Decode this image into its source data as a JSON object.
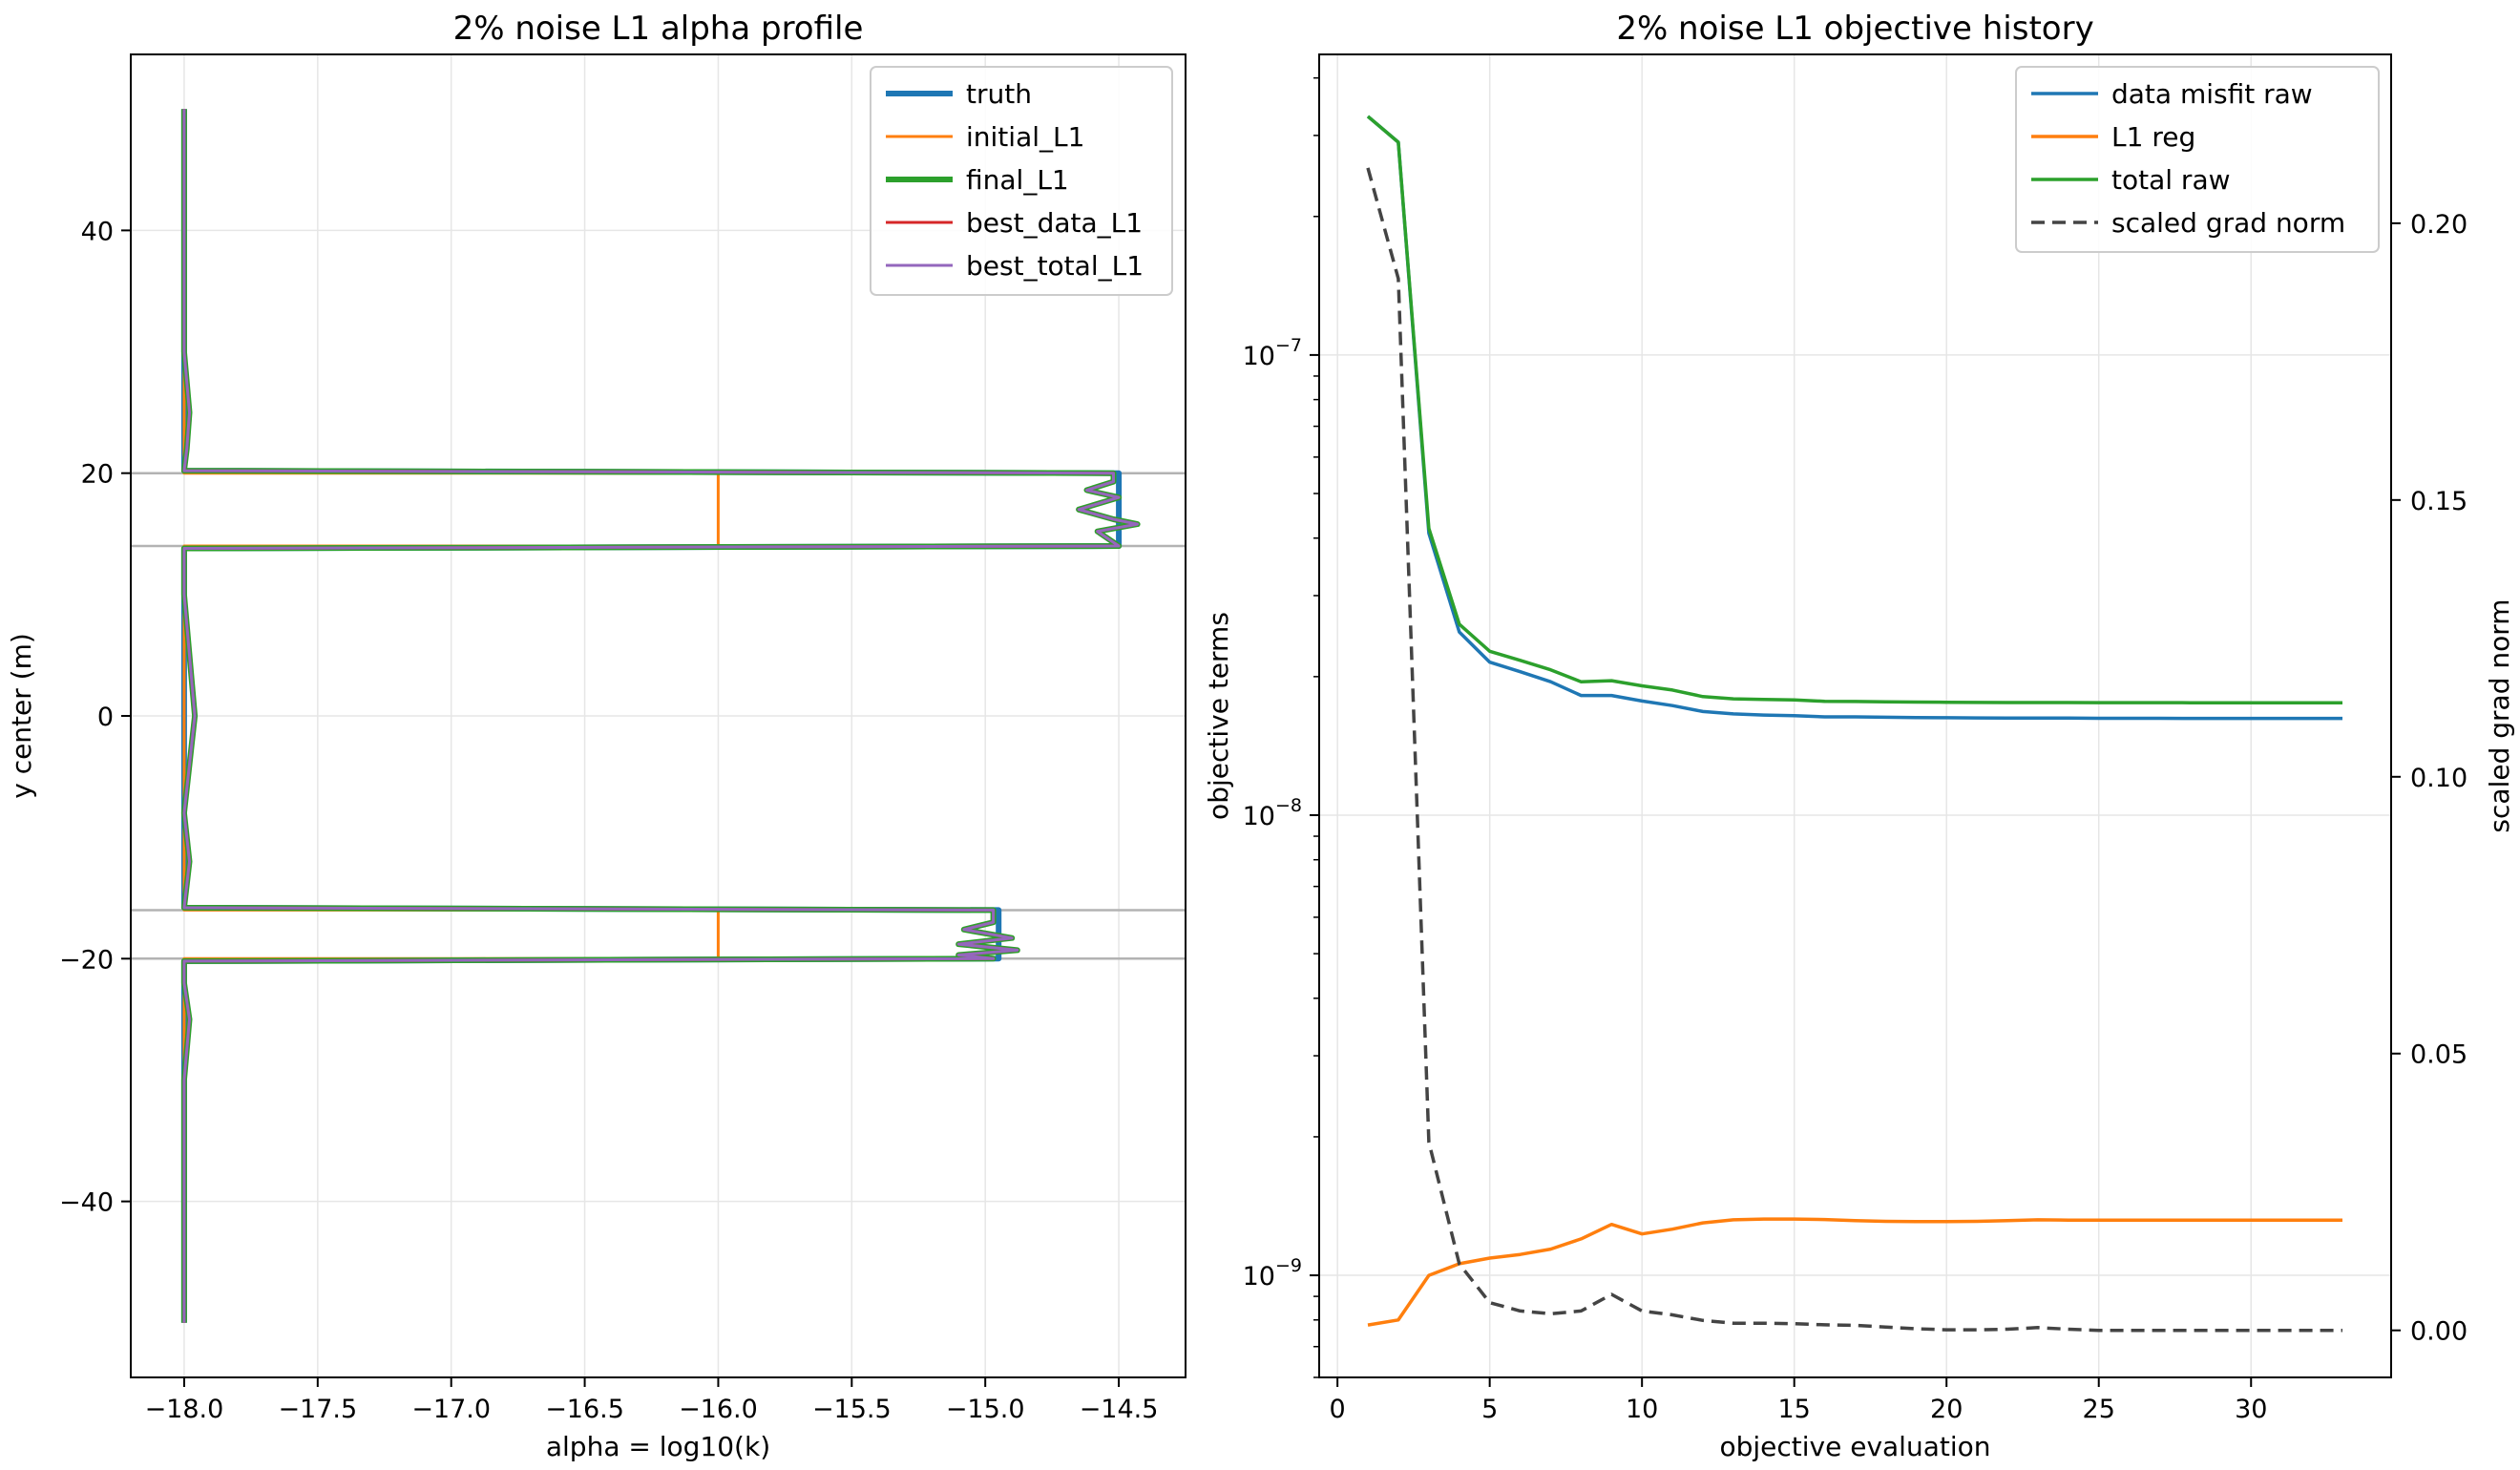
{
  "chart_data": [
    {
      "type": "line",
      "title": "2% noise L1 alpha profile",
      "xlabel": "alpha = log10(k)",
      "ylabel": "y center (m)",
      "xlim": [
        -18.2,
        -14.25
      ],
      "ylim": [
        -54.5,
        54.5
      ],
      "xticks": [
        -18.0,
        -17.5,
        -17.0,
        -16.5,
        -16.0,
        -15.5,
        -15.0,
        -14.5
      ],
      "xtick_labels": [
        "−18.0",
        "−17.5",
        "−17.0",
        "−16.5",
        "−16.0",
        "−15.5",
        "−15.0",
        "−14.5"
      ],
      "yticks": [
        -40,
        -20,
        0,
        20,
        40
      ],
      "ytick_labels": [
        "−40",
        "−20",
        "0",
        "20",
        "40"
      ],
      "grid": true,
      "hlines": [
        20,
        14,
        -16,
        -20
      ],
      "legend_position": "top-right",
      "series": [
        {
          "name": "truth",
          "color": "#1f77b4",
          "width": 6,
          "x": [
            -18.0,
            -18.0,
            -14.5,
            -14.5,
            -18.0,
            -18.0,
            -14.95,
            -14.95,
            -18.0,
            -18.0
          ],
          "y": [
            50,
            20.2,
            20.0,
            14.0,
            13.8,
            -15.8,
            -16.0,
            -20.0,
            -20.2,
            -50
          ]
        },
        {
          "name": "initial_L1",
          "color": "#ff7f0e",
          "width": 3,
          "x": [
            -18.0,
            -18.0,
            -16.0,
            -16.0,
            -18.0,
            -18.0,
            -16.0,
            -16.0,
            -18.0,
            -18.0
          ],
          "y": [
            50,
            20.0,
            20.0,
            14.0,
            14.0,
            -16.0,
            -16.0,
            -20.0,
            -20.0,
            -50
          ]
        },
        {
          "name": "final_L1",
          "color": "#2ca02c",
          "width": 6,
          "x": [
            -18.0,
            -18.0,
            -17.98,
            -17.99,
            -18.0,
            -14.52,
            -14.52,
            -14.62,
            -14.5,
            -14.65,
            -14.52,
            -14.43,
            -14.58,
            -14.5,
            -18.0,
            -18.0,
            -17.98,
            -17.96,
            -17.98,
            -18.0,
            -17.98,
            -18.0,
            -18.0,
            -14.97,
            -14.97,
            -15.08,
            -14.9,
            -15.1,
            -14.88,
            -15.1,
            -14.97,
            -18.0,
            -18.0,
            -17.98,
            -18.0,
            -18.0
          ],
          "y": [
            50,
            30,
            25,
            22,
            20.2,
            20.0,
            19.3,
            18.6,
            18.0,
            17.0,
            16.2,
            15.8,
            15.2,
            14.0,
            13.8,
            10,
            5,
            0,
            -4,
            -8,
            -12,
            -15.8,
            -15.8,
            -16.0,
            -17.0,
            -17.6,
            -18.3,
            -18.8,
            -19.3,
            -19.7,
            -20.0,
            -20.2,
            -22,
            -25,
            -30,
            -50
          ]
        },
        {
          "name": "best_data_L1",
          "color": "#d62728",
          "width": 3,
          "x": [
            -18.0,
            -18.0,
            -17.98,
            -17.99,
            -18.0,
            -14.52,
            -14.52,
            -14.62,
            -14.5,
            -14.65,
            -14.52,
            -14.43,
            -14.58,
            -14.5,
            -18.0,
            -18.0,
            -17.98,
            -17.96,
            -17.98,
            -18.0,
            -17.98,
            -18.0,
            -18.0,
            -14.97,
            -14.97,
            -15.08,
            -14.9,
            -15.1,
            -14.88,
            -15.1,
            -14.97,
            -18.0,
            -18.0,
            -17.98,
            -18.0,
            -18.0
          ],
          "y": [
            50,
            30,
            25,
            22,
            20.2,
            20.0,
            19.3,
            18.6,
            18.0,
            17.0,
            16.2,
            15.8,
            15.2,
            14.0,
            13.8,
            10,
            5,
            0,
            -4,
            -8,
            -12,
            -15.8,
            -15.8,
            -16.0,
            -17.0,
            -17.6,
            -18.3,
            -18.8,
            -19.3,
            -19.7,
            -20.0,
            -20.2,
            -22,
            -25,
            -30,
            -50
          ]
        },
        {
          "name": "best_total_L1",
          "color": "#9467bd",
          "width": 3,
          "x": [
            -18.0,
            -18.0,
            -17.98,
            -17.99,
            -18.0,
            -14.52,
            -14.52,
            -14.62,
            -14.5,
            -14.65,
            -14.52,
            -14.43,
            -14.58,
            -14.5,
            -18.0,
            -18.0,
            -17.98,
            -17.96,
            -17.98,
            -18.0,
            -17.98,
            -18.0,
            -18.0,
            -14.97,
            -14.97,
            -15.08,
            -14.9,
            -15.1,
            -14.88,
            -15.1,
            -14.97,
            -18.0,
            -18.0,
            -17.98,
            -18.0,
            -18.0
          ],
          "y": [
            50,
            30,
            25,
            22,
            20.2,
            20.0,
            19.3,
            18.6,
            18.0,
            17.0,
            16.2,
            15.8,
            15.2,
            14.0,
            13.8,
            10,
            5,
            0,
            -4,
            -8,
            -12,
            -15.8,
            -15.8,
            -16.0,
            -17.0,
            -17.6,
            -18.3,
            -18.8,
            -19.3,
            -19.7,
            -20.0,
            -20.2,
            -22,
            -25,
            -30,
            -50
          ]
        }
      ]
    },
    {
      "type": "line",
      "title": "2% noise L1 objective history",
      "xlabel": "objective evaluation",
      "ylabel": "objective terms",
      "y2label": "scaled grad norm",
      "yscale": "log",
      "xlim": [
        -0.6,
        34.6
      ],
      "ylim": [
        6e-10,
        4.5e-07
      ],
      "y2lim": [
        -0.0085,
        0.2305
      ],
      "xticks": [
        0,
        5,
        10,
        15,
        20,
        25,
        30
      ],
      "xtick_labels": [
        "0",
        "5",
        "10",
        "15",
        "20",
        "25",
        "30"
      ],
      "yticks": [
        1e-09,
        1e-08,
        1e-07
      ],
      "ytick_labels": [
        [
          "10",
          "−9"
        ],
        [
          "10",
          "−8"
        ],
        [
          "10",
          "−7"
        ]
      ],
      "y2ticks": [
        0.0,
        0.05,
        0.1,
        0.15,
        0.2
      ],
      "y2tick_labels": [
        "0.00",
        "0.05",
        "0.10",
        "0.15",
        "0.20"
      ],
      "grid": true,
      "legend_position": "top-right",
      "x": [
        1,
        2,
        3,
        4,
        5,
        6,
        7,
        8,
        9,
        10,
        11,
        12,
        13,
        14,
        15,
        16,
        17,
        18,
        19,
        20,
        21,
        22,
        23,
        24,
        25,
        26,
        27,
        28,
        29,
        30,
        31,
        32,
        33
      ],
      "series": [
        {
          "name": "data misfit raw",
          "color": "#1f77b4",
          "axis": "left",
          "dash": "",
          "values": [
            3.3e-07,
            2.9e-07,
            4.1e-08,
            2.5e-08,
            2.15e-08,
            2.05e-08,
            1.95e-08,
            1.82e-08,
            1.82e-08,
            1.77e-08,
            1.73e-08,
            1.68e-08,
            1.66e-08,
            1.65e-08,
            1.645e-08,
            1.635e-08,
            1.635e-08,
            1.632e-08,
            1.63e-08,
            1.628e-08,
            1.627e-08,
            1.626e-08,
            1.625e-08,
            1.625e-08,
            1.624e-08,
            1.624e-08,
            1.624e-08,
            1.623e-08,
            1.623e-08,
            1.623e-08,
            1.623e-08,
            1.623e-08,
            1.623e-08
          ]
        },
        {
          "name": "L1 reg",
          "color": "#ff7f0e",
          "axis": "left",
          "dash": "",
          "values": [
            7.8e-10,
            8e-10,
            1e-09,
            1.06e-09,
            1.09e-09,
            1.11e-09,
            1.14e-09,
            1.2e-09,
            1.29e-09,
            1.23e-09,
            1.26e-09,
            1.3e-09,
            1.32e-09,
            1.325e-09,
            1.325e-09,
            1.322e-09,
            1.315e-09,
            1.31e-09,
            1.308e-09,
            1.308e-09,
            1.31e-09,
            1.315e-09,
            1.32e-09,
            1.318e-09,
            1.318e-09,
            1.318e-09,
            1.318e-09,
            1.318e-09,
            1.318e-09,
            1.318e-09,
            1.318e-09,
            1.318e-09,
            1.318e-09
          ]
        },
        {
          "name": "total raw",
          "color": "#2ca02c",
          "axis": "left",
          "dash": "",
          "values": [
            3.3e-07,
            2.9e-07,
            4.2e-08,
            2.6e-08,
            2.27e-08,
            2.17e-08,
            2.07e-08,
            1.95e-08,
            1.96e-08,
            1.91e-08,
            1.87e-08,
            1.81e-08,
            1.79e-08,
            1.785e-08,
            1.78e-08,
            1.768e-08,
            1.766e-08,
            1.763e-08,
            1.761e-08,
            1.759e-08,
            1.758e-08,
            1.757e-08,
            1.757e-08,
            1.757e-08,
            1.756e-08,
            1.756e-08,
            1.756e-08,
            1.755e-08,
            1.755e-08,
            1.755e-08,
            1.755e-08,
            1.755e-08,
            1.755e-08
          ]
        },
        {
          "name": "scaled grad norm",
          "color": "#444444",
          "axis": "right",
          "dash": "14 8",
          "values": [
            0.21,
            0.19,
            0.034,
            0.012,
            0.005,
            0.0035,
            0.003,
            0.0035,
            0.0065,
            0.0035,
            0.0028,
            0.0018,
            0.0013,
            0.0013,
            0.0012,
            0.001,
            0.0009,
            0.0006,
            0.0003,
            0.0001,
            0.0001,
            0.0002,
            0.0005,
            0.0002,
            0.0,
            0.0,
            0.0,
            0.0,
            0.0,
            0.0,
            0.0,
            0.0,
            0.0
          ]
        }
      ]
    }
  ]
}
